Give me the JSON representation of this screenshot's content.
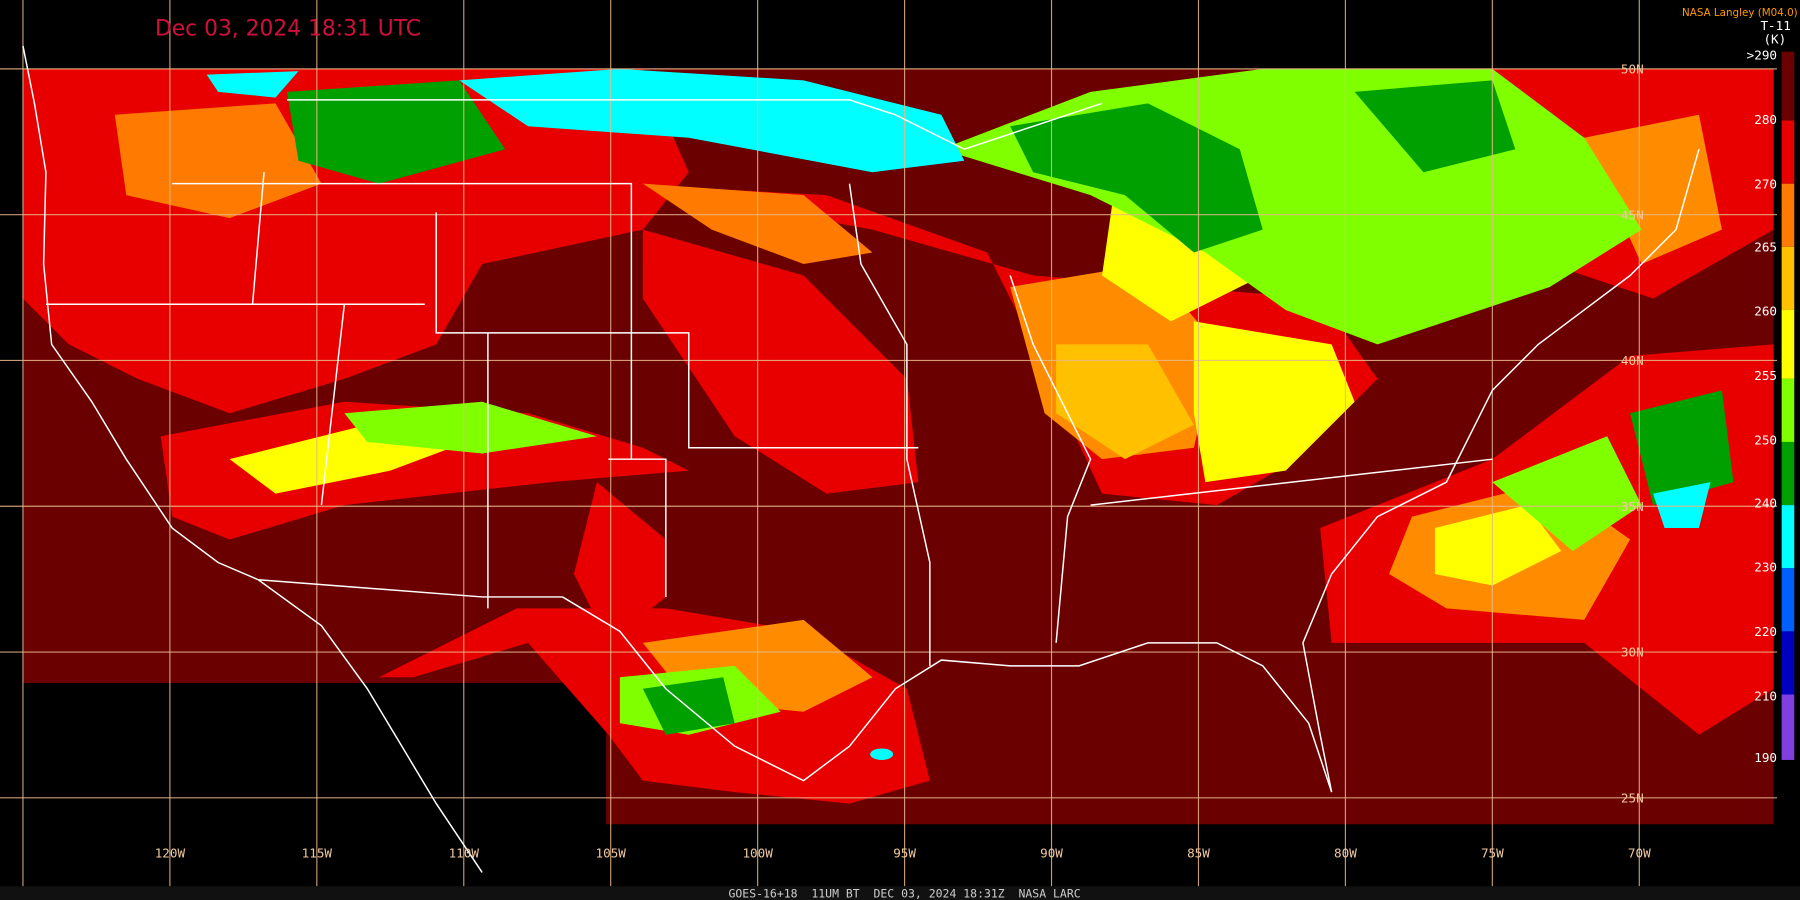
{
  "header": {
    "title": "Dec 03, 2024 18:31 UTC",
    "credit": "NASA Langley (M04.0)"
  },
  "colorbar": {
    "title": "T-11",
    "unit": "(K)",
    "labels": [
      ">290",
      "280",
      "270",
      "265",
      "260",
      "255",
      "250",
      "240",
      "230",
      "220",
      "210",
      "190"
    ]
  },
  "map": {
    "longitude_labels": [
      "120W",
      "115W",
      "110W",
      "105W",
      "100W",
      "95W",
      "90W",
      "85W",
      "80W",
      "75W",
      "70W"
    ],
    "latitude_labels": [
      "50N",
      "45N",
      "40N",
      "35N",
      "30N",
      "25N"
    ]
  },
  "footer": "GOES-16+18  11UM BT  DEC 03, 2024 18:31Z  NASA LARC"
}
